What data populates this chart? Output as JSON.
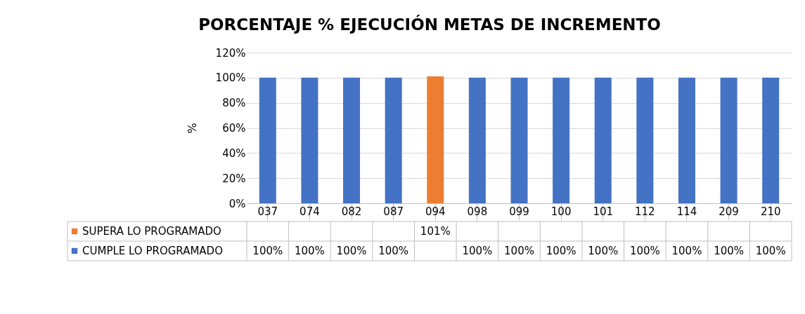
{
  "chart_data": {
    "type": "bar",
    "title": "PORCENTAJE % EJECUCIÓN METAS DE INCREMENTO",
    "ylabel": "%",
    "categories": [
      "037",
      "074",
      "082",
      "087",
      "094",
      "098",
      "099",
      "100",
      "101",
      "112",
      "114",
      "209",
      "210"
    ],
    "series": [
      {
        "name": "SUPERA LO PROGRAMADO",
        "color": "#ed7d31",
        "values": [
          null,
          null,
          null,
          null,
          101,
          null,
          null,
          null,
          null,
          null,
          null,
          null,
          null
        ],
        "value_labels": [
          null,
          null,
          null,
          null,
          "101%",
          null,
          null,
          null,
          null,
          null,
          null,
          null,
          null
        ]
      },
      {
        "name": "CUMPLE LO PROGRAMADO",
        "color": "#4472c4",
        "values": [
          100,
          100,
          100,
          100,
          null,
          100,
          100,
          100,
          100,
          100,
          100,
          100,
          100
        ],
        "value_labels": [
          "100%",
          "100%",
          "100%",
          "100%",
          null,
          "100%",
          "100%",
          "100%",
          "100%",
          "100%",
          "100%",
          "100%",
          "100%"
        ]
      }
    ],
    "ylim": [
      0,
      120
    ],
    "yticks": [
      {
        "value": 0,
        "label": "0%"
      },
      {
        "value": 20,
        "label": "20%"
      },
      {
        "value": 40,
        "label": "40%"
      },
      {
        "value": 60,
        "label": "60%"
      },
      {
        "value": 80,
        "label": "80%"
      },
      {
        "value": 100,
        "label": "100%"
      },
      {
        "value": 120,
        "label": "120%"
      }
    ],
    "grid": "y",
    "legend": "bottom"
  }
}
